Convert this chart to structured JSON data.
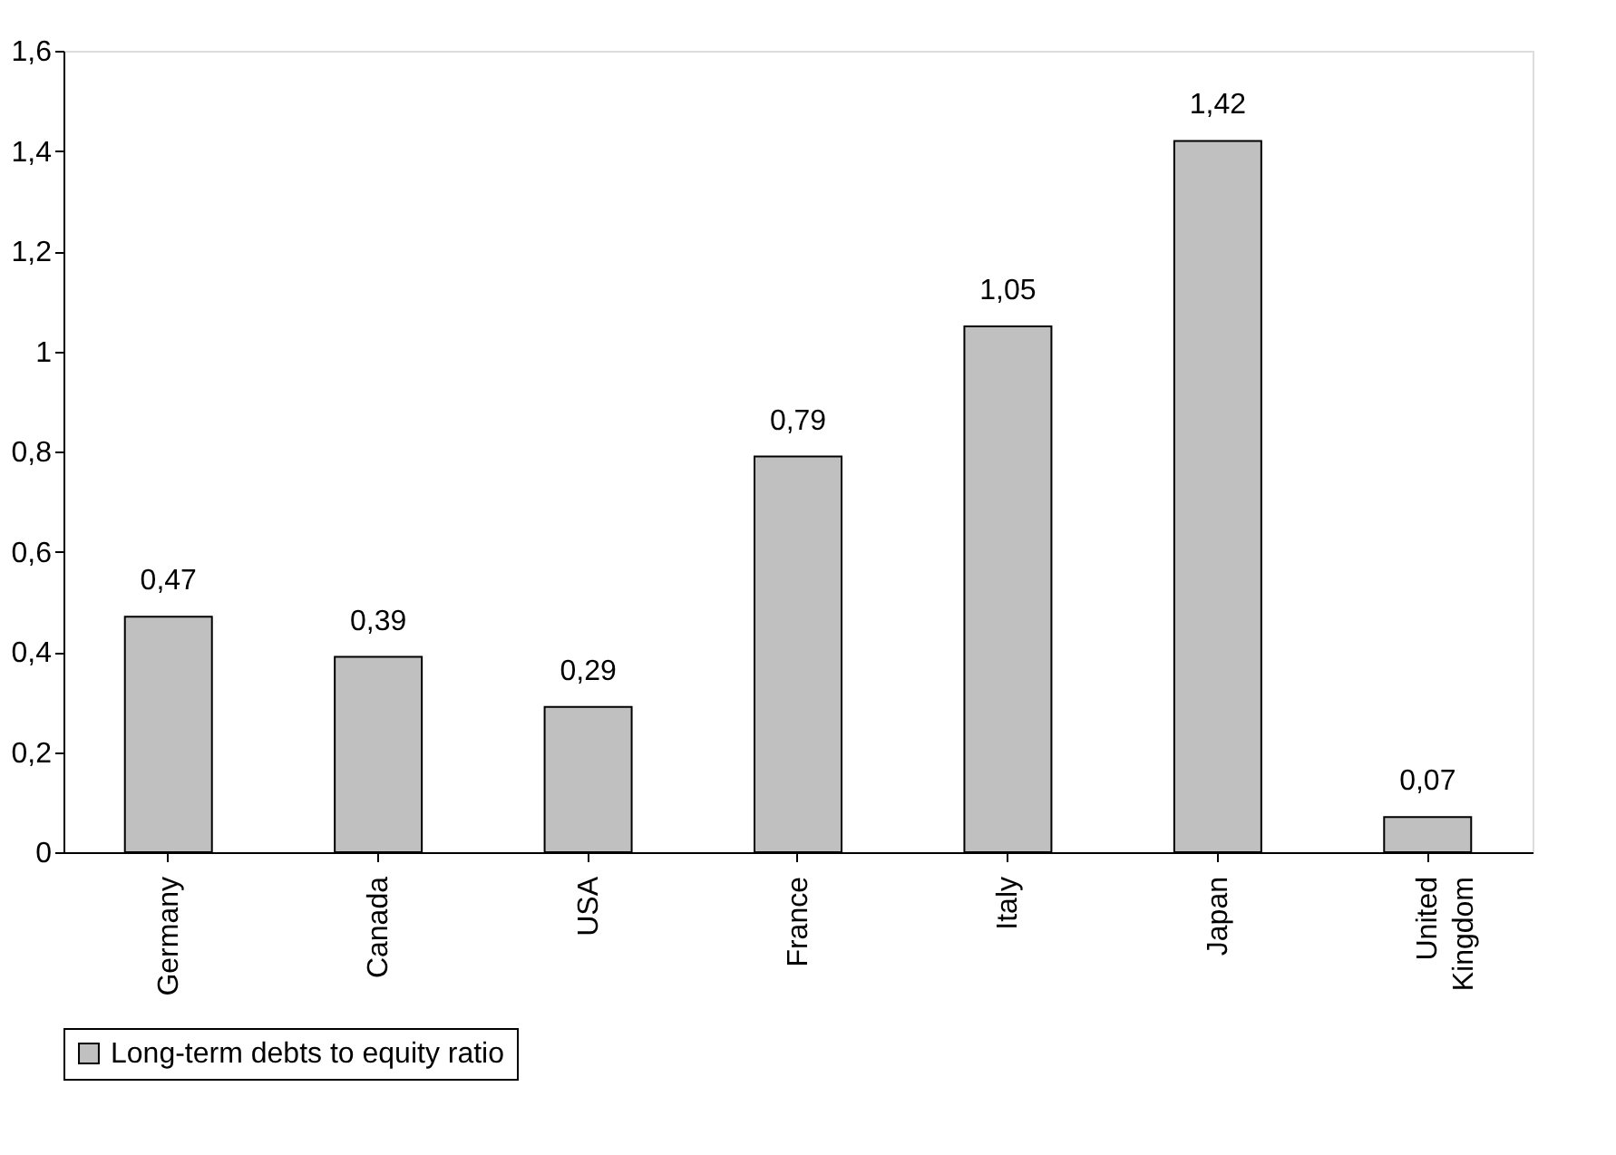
{
  "chart_data": {
    "type": "bar",
    "categories": [
      "Germany",
      "Canada",
      "USA",
      "France",
      "Italy",
      "Japan",
      "United Kingdom"
    ],
    "series": [
      {
        "name": "Long-term debts to equity ratio",
        "color": "#c0c0c0",
        "values": [
          0.47,
          0.39,
          0.29,
          0.79,
          1.05,
          1.42,
          0.07
        ],
        "value_labels": [
          "0,47",
          "0,39",
          "0,29",
          "0,79",
          "1,05",
          "1,42",
          "0,07"
        ]
      }
    ],
    "ylim": [
      0,
      1.6
    ],
    "yticks": [
      0,
      {
        "value": 0.2,
        "label": "0,2"
      },
      {
        "value": 0.4,
        "label": "0,4"
      },
      {
        "value": 0.6,
        "label": "0,6"
      },
      {
        "value": 0.8,
        "label": "0,8"
      },
      1,
      {
        "value": 1.2,
        "label": "1,2"
      },
      {
        "value": 1.4,
        "label": "1,4"
      },
      {
        "value": 1.6,
        "label": "1,6"
      }
    ],
    "grid": false,
    "legend": "bottom"
  }
}
